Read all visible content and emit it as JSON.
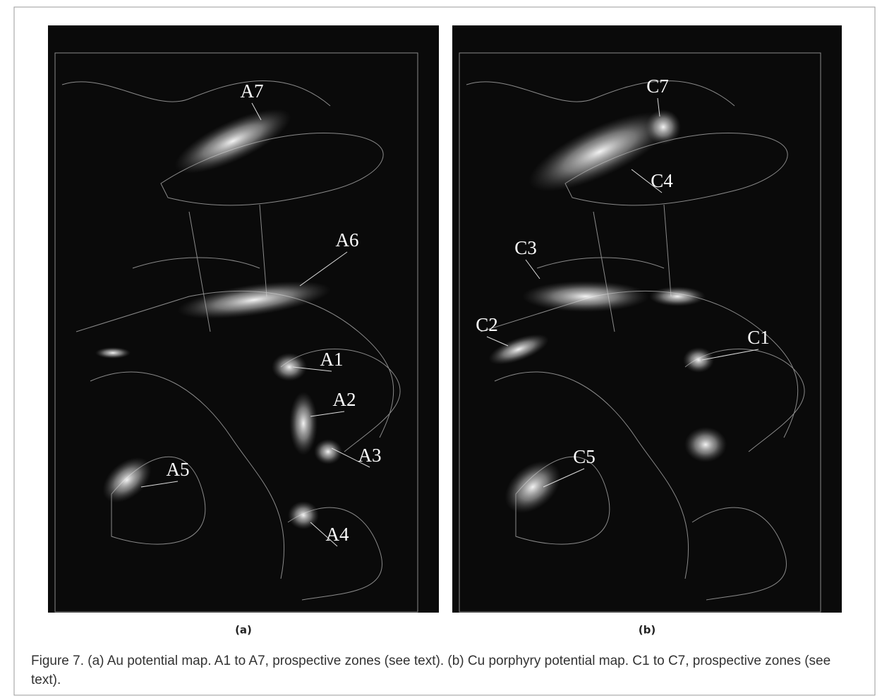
{
  "figure": {
    "panels": [
      {
        "labels": [
          "A7",
          "A6",
          "A1",
          "A2",
          "A3",
          "A5",
          "A4"
        ],
        "caption": "(a)"
      },
      {
        "labels": [
          "C7",
          "C4",
          "C3",
          "C2",
          "C1",
          "C5"
        ],
        "caption": "(b)"
      }
    ],
    "caption": "Figure 7. (a) Au potential map. A1 to A7, prospective zones (see text). (b) Cu porphyry potential map. C1 to C7, prospective zones (see text)."
  }
}
